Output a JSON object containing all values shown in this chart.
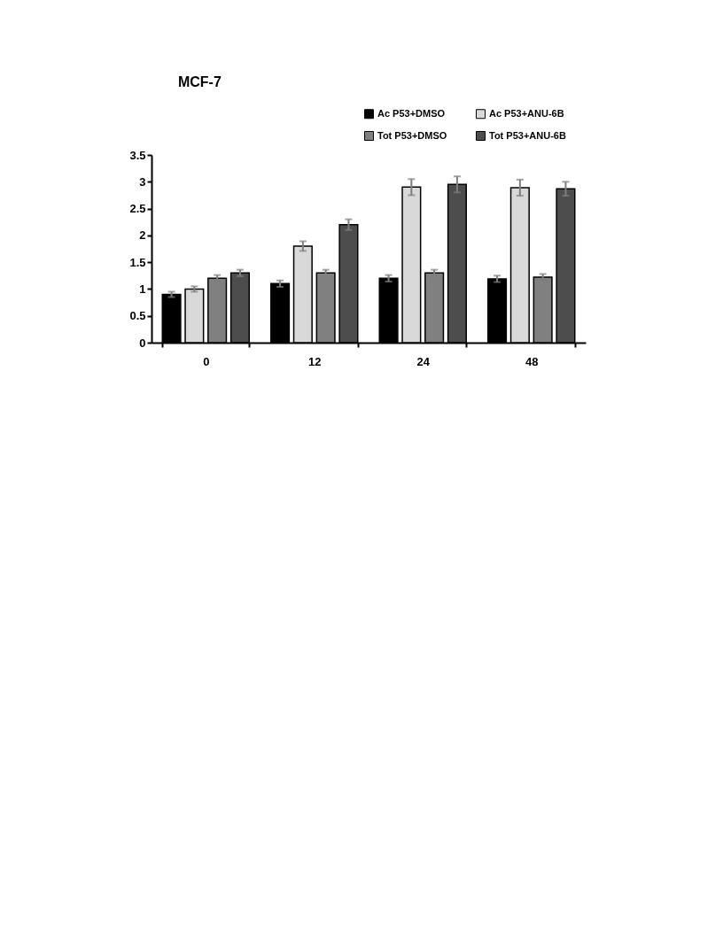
{
  "chart_data": {
    "type": "bar",
    "title": "MCF-7",
    "categories": [
      "0",
      "12",
      "24",
      "48"
    ],
    "series": [
      {
        "name": "Ac P53+DMSO",
        "color": "#000000",
        "values": [
          0.9,
          1.1,
          1.2,
          1.19
        ],
        "errors": [
          0.05,
          0.06,
          0.06,
          0.06
        ]
      },
      {
        "name": "Ac P53+ANU-6B",
        "color": "#d9d9d9",
        "values": [
          1.0,
          1.8,
          2.9,
          2.89
        ],
        "errors": [
          0.05,
          0.09,
          0.15,
          0.15
        ]
      },
      {
        "name": "Tot P53+DMSO",
        "color": "#808080",
        "values": [
          1.2,
          1.3,
          1.3,
          1.22
        ],
        "errors": [
          0.06,
          0.06,
          0.06,
          0.06
        ]
      },
      {
        "name": "Tot P53+ANU-6B",
        "color": "#4d4d4d",
        "values": [
          1.3,
          2.2,
          2.95,
          2.87
        ],
        "errors": [
          0.06,
          0.1,
          0.15,
          0.13
        ]
      }
    ],
    "ylim": [
      0,
      3.5
    ],
    "yticks": [
      0,
      0.5,
      1,
      1.5,
      2,
      2.5,
      3,
      3.5
    ],
    "grid": false,
    "legend": "top right"
  }
}
